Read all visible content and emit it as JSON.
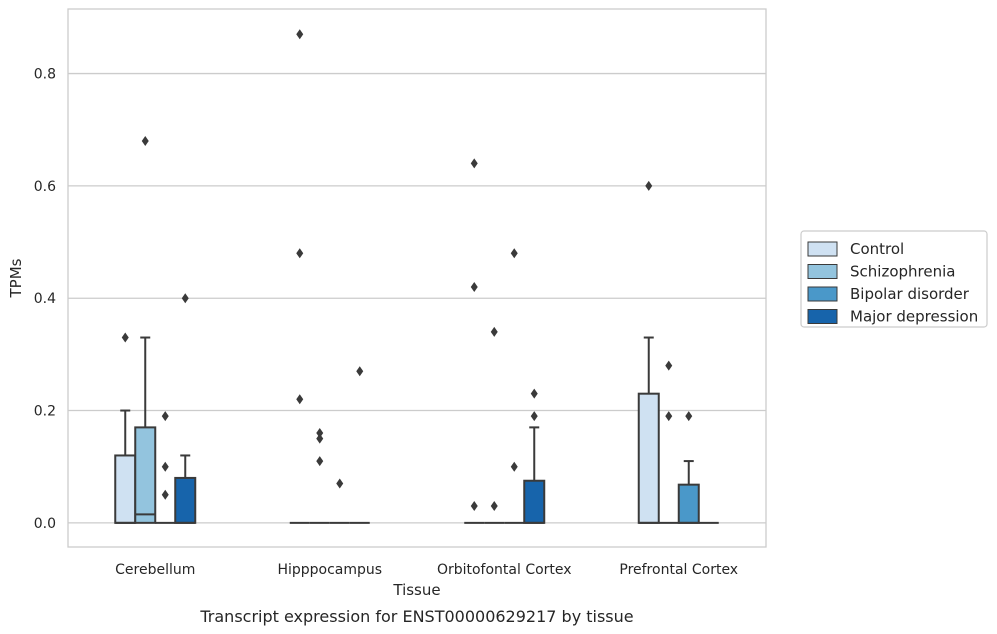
{
  "caption": "Transcript expression for ENST00000629217 by tissue",
  "chart_data": {
    "type": "box",
    "xlabel": "Tissue",
    "ylabel": "TPMs",
    "ylim": [
      -0.043,
      0.915
    ],
    "yticks": [
      "0.0",
      "0.2",
      "0.4",
      "0.6",
      "0.8"
    ],
    "grid": "horizontal",
    "legend_position": "right",
    "categories": [
      "Cerebellum",
      "Hipppocampus",
      "Orbitofontal Cortex",
      "Prefrontal Cortex"
    ],
    "series": [
      {
        "name": "Control",
        "color": "#cfe1f2",
        "boxes": [
          {
            "q1": 0,
            "median": 0,
            "q3": 0.12,
            "whisker_low": 0,
            "whisker_high": 0.2,
            "outliers": [
              0.33
            ]
          },
          {
            "q1": 0,
            "median": 0,
            "q3": 0,
            "whisker_low": 0,
            "whisker_high": 0,
            "outliers": [
              0.87,
              0.48,
              0.22
            ]
          },
          {
            "q1": 0,
            "median": 0,
            "q3": 0,
            "whisker_low": 0,
            "whisker_high": 0,
            "outliers": [
              0.64,
              0.42,
              0.03
            ]
          },
          {
            "q1": 0,
            "median": 0,
            "q3": 0.23,
            "whisker_low": 0,
            "whisker_high": 0.33,
            "outliers": [
              0.6
            ]
          }
        ]
      },
      {
        "name": "Schizophrenia",
        "color": "#93c4de",
        "boxes": [
          {
            "q1": 0,
            "median": 0.015,
            "q3": 0.17,
            "whisker_low": 0,
            "whisker_high": 0.33,
            "outliers": [
              0.68
            ]
          },
          {
            "q1": 0,
            "median": 0,
            "q3": 0,
            "whisker_low": 0,
            "whisker_high": 0,
            "outliers": [
              0.16,
              0.15,
              0.11
            ]
          },
          {
            "q1": 0,
            "median": 0,
            "q3": 0,
            "whisker_low": 0,
            "whisker_high": 0,
            "outliers": [
              0.34,
              0.03
            ]
          },
          {
            "q1": 0,
            "median": 0,
            "q3": 0,
            "whisker_low": 0,
            "whisker_high": 0,
            "outliers": [
              0.28,
              0.19
            ]
          }
        ]
      },
      {
        "name": "Bipolar disorder",
        "color": "#4a98c9",
        "boxes": [
          {
            "q1": 0,
            "median": 0,
            "q3": 0,
            "whisker_low": 0,
            "whisker_high": 0,
            "outliers": [
              0.19,
              0.1,
              0.05
            ]
          },
          {
            "q1": 0,
            "median": 0,
            "q3": 0,
            "whisker_low": 0,
            "whisker_high": 0,
            "outliers": [
              0.07
            ]
          },
          {
            "q1": 0,
            "median": 0,
            "q3": 0,
            "whisker_low": 0,
            "whisker_high": 0,
            "outliers": [
              0.48,
              0.1
            ]
          },
          {
            "q1": 0,
            "median": 0,
            "q3": 0.068,
            "whisker_low": 0,
            "whisker_high": 0.11,
            "outliers": [
              0.19
            ]
          }
        ]
      },
      {
        "name": "Major depression",
        "color": "#1764ab",
        "boxes": [
          {
            "q1": 0,
            "median": 0,
            "q3": 0.08,
            "whisker_low": 0,
            "whisker_high": 0.12,
            "outliers": [
              0.4
            ]
          },
          {
            "q1": 0,
            "median": 0,
            "q3": 0,
            "whisker_low": 0,
            "whisker_high": 0,
            "outliers": [
              0.27
            ]
          },
          {
            "q1": 0,
            "median": 0,
            "q3": 0.075,
            "whisker_low": 0,
            "whisker_high": 0.17,
            "outliers": [
              0.23,
              0.19
            ]
          },
          {
            "q1": 0,
            "median": 0,
            "q3": 0,
            "whisker_low": 0,
            "whisker_high": 0,
            "outliers": []
          }
        ]
      }
    ]
  }
}
